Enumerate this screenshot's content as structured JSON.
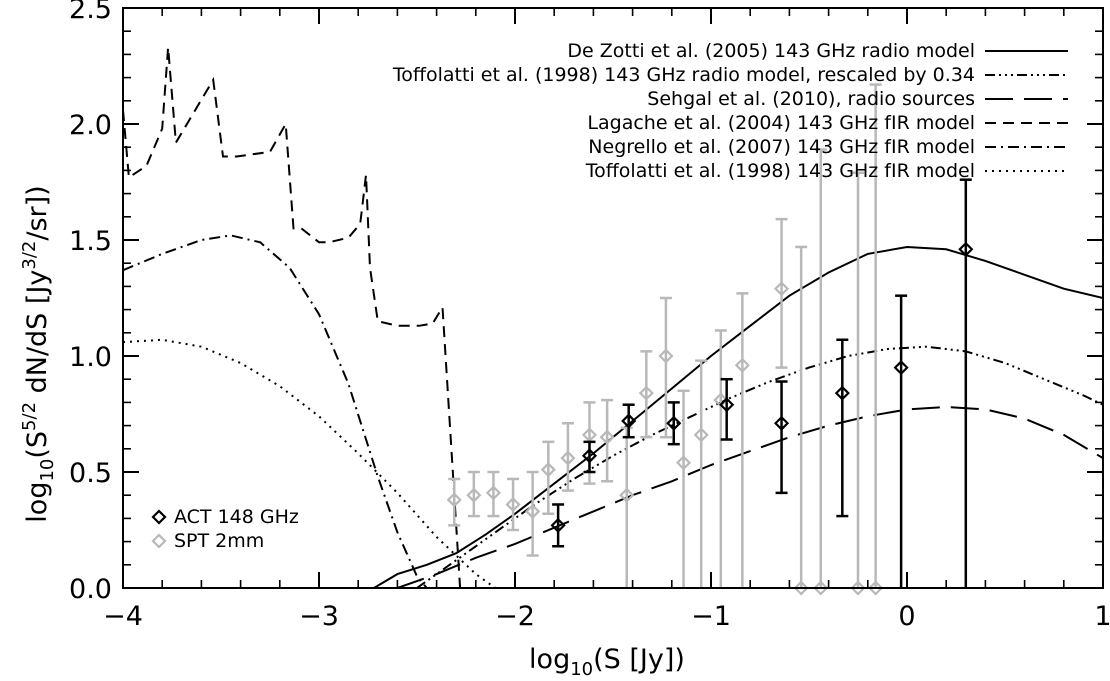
{
  "chart_data": {
    "type": "line",
    "xlabel": {
      "pre": "log",
      "sub": "10",
      "post": "(S [Jy])"
    },
    "ylabel": {
      "pre": "log",
      "sub": "10",
      "mid1": "(S",
      "sup1": "5/2",
      "mid2": " dN/dS [Jy",
      "sup2": "3/2",
      "post": "/sr])"
    },
    "xlim": [
      -4,
      1
    ],
    "ylim": [
      0,
      2.5
    ],
    "x_ticks": [
      "−4",
      "−3",
      "−2",
      "−1",
      "0",
      "1"
    ],
    "x_tick_values": [
      -4,
      -3,
      -2,
      -1,
      0,
      1
    ],
    "y_ticks": [
      "0.0",
      "0.5",
      "1.0",
      "1.5",
      "2.0",
      "2.5"
    ],
    "y_tick_values": [
      0,
      0.5,
      1.0,
      1.5,
      2.0,
      2.5
    ],
    "grid": false,
    "legend_position": "top-right",
    "models": [
      {
        "label": "De Zotti et al. (2005) 143 GHz radio model",
        "dash": "",
        "color": "#000000",
        "x": [
          -2.72,
          -2.6,
          -2.45,
          -2.3,
          -2.15,
          -2.0,
          -1.8,
          -1.6,
          -1.4,
          -1.2,
          -1.0,
          -0.8,
          -0.6,
          -0.4,
          -0.2,
          0.0,
          0.2,
          0.4,
          0.6,
          0.8,
          1.0
        ],
        "y": [
          0.0,
          0.06,
          0.1,
          0.15,
          0.23,
          0.32,
          0.45,
          0.58,
          0.72,
          0.86,
          1.0,
          1.13,
          1.26,
          1.36,
          1.44,
          1.47,
          1.46,
          1.41,
          1.35,
          1.29,
          1.25
        ]
      },
      {
        "label": "Toffolatti et al. (1998) 143 GHz radio model, rescaled by 0.34",
        "dash": "10,4,2,4,2,4,2,4",
        "color": "#000000",
        "x": [
          -2.5,
          -2.3,
          -2.1,
          -1.9,
          -1.7,
          -1.5,
          -1.3,
          -1.1,
          -0.9,
          -0.7,
          -0.5,
          -0.3,
          -0.1,
          0.1,
          0.3,
          0.5,
          0.7,
          0.9,
          1.0
        ],
        "y": [
          0.0,
          0.12,
          0.24,
          0.36,
          0.47,
          0.57,
          0.66,
          0.74,
          0.82,
          0.89,
          0.95,
          1.0,
          1.03,
          1.04,
          1.02,
          0.97,
          0.9,
          0.83,
          0.79
        ]
      },
      {
        "label": "Sehgal et al. (2010), radio sources",
        "dash": "28,11",
        "color": "#000000",
        "x": [
          -2.6,
          -2.4,
          -2.2,
          -2.0,
          -1.8,
          -1.6,
          -1.4,
          -1.2,
          -1.0,
          -0.8,
          -0.6,
          -0.4,
          -0.2,
          0.0,
          0.2,
          0.4,
          0.6,
          0.8,
          1.0
        ],
        "y": [
          0.0,
          0.06,
          0.13,
          0.19,
          0.26,
          0.33,
          0.4,
          0.46,
          0.53,
          0.59,
          0.65,
          0.7,
          0.74,
          0.77,
          0.78,
          0.77,
          0.73,
          0.66,
          0.56
        ]
      },
      {
        "label": "Lagache et al. (2004) 143 GHz fIR model",
        "dash": "11,7",
        "color": "#000000",
        "x": [
          -4.0,
          -3.97,
          -3.88,
          -3.8,
          -3.77,
          -3.73,
          -3.54,
          -3.49,
          -3.42,
          -3.25,
          -3.17,
          -3.13,
          -3.09,
          -3.0,
          -2.95,
          -2.85,
          -2.79,
          -2.76,
          -2.74,
          -2.7,
          -2.6,
          -2.49,
          -2.42,
          -2.37,
          -2.28
        ],
        "y": [
          2.06,
          1.77,
          1.82,
          1.98,
          2.33,
          1.92,
          2.19,
          1.86,
          1.86,
          1.88,
          2.0,
          1.55,
          1.55,
          1.49,
          1.49,
          1.51,
          1.57,
          1.78,
          1.38,
          1.15,
          1.13,
          1.13,
          1.14,
          1.21,
          0.0
        ]
      },
      {
        "label": "Negrello et al. (2007) 143 GHz fIR model",
        "dash": "11,5,2,5",
        "color": "#000000",
        "x": [
          -4.0,
          -3.8,
          -3.6,
          -3.45,
          -3.3,
          -3.15,
          -3.0,
          -2.85,
          -2.7,
          -2.6,
          -2.5,
          -2.45
        ],
        "y": [
          1.37,
          1.44,
          1.5,
          1.52,
          1.49,
          1.38,
          1.18,
          0.88,
          0.48,
          0.24,
          0.05,
          0.0
        ]
      },
      {
        "label": "Toffolatti et al. (1998) 143 GHz fIR model",
        "dash": "2,5",
        "color": "#000000",
        "x": [
          -4.0,
          -3.8,
          -3.6,
          -3.4,
          -3.2,
          -3.0,
          -2.8,
          -2.6,
          -2.4,
          -2.2,
          -2.1
        ],
        "y": [
          1.06,
          1.07,
          1.04,
          0.97,
          0.87,
          0.74,
          0.58,
          0.41,
          0.22,
          0.06,
          0.0
        ]
      }
    ],
    "datasets": [
      {
        "label": "ACT 148 GHz",
        "color": "#000000",
        "points": [
          {
            "x": -1.78,
            "y": 0.27,
            "yerr_low": 0.18,
            "yerr_high": 0.36
          },
          {
            "x": -1.62,
            "y": 0.57,
            "yerr_low": 0.5,
            "yerr_high": 0.63
          },
          {
            "x": -1.42,
            "y": 0.72,
            "yerr_low": 0.65,
            "yerr_high": 0.79
          },
          {
            "x": -1.19,
            "y": 0.71,
            "yerr_low": 0.62,
            "yerr_high": 0.8
          },
          {
            "x": -0.92,
            "y": 0.79,
            "yerr_low": 0.64,
            "yerr_high": 0.9
          },
          {
            "x": -0.64,
            "y": 0.71,
            "yerr_low": 0.41,
            "yerr_high": 0.89
          },
          {
            "x": -0.33,
            "y": 0.84,
            "yerr_low": 0.31,
            "yerr_high": 1.07
          },
          {
            "x": -0.03,
            "y": 0.95,
            "yerr_low": 0.0,
            "yerr_high": 1.26
          },
          {
            "x": 0.3,
            "y": 1.46,
            "yerr_low": 0.0,
            "yerr_high": 1.76
          }
        ]
      },
      {
        "label": "SPT 2mm",
        "color": "#b8b8b8",
        "points": [
          {
            "x": -2.31,
            "y": 0.38,
            "yerr_low": 0.27,
            "yerr_high": 0.47
          },
          {
            "x": -2.21,
            "y": 0.4,
            "yerr_low": 0.31,
            "yerr_high": 0.5
          },
          {
            "x": -2.11,
            "y": 0.41,
            "yerr_low": 0.31,
            "yerr_high": 0.5
          },
          {
            "x": -2.01,
            "y": 0.36,
            "yerr_low": 0.25,
            "yerr_high": 0.47
          },
          {
            "x": -1.91,
            "y": 0.33,
            "yerr_low": 0.14,
            "yerr_high": 0.5
          },
          {
            "x": -1.83,
            "y": 0.51,
            "yerr_low": 0.32,
            "yerr_high": 0.63
          },
          {
            "x": -1.73,
            "y": 0.56,
            "yerr_low": 0.42,
            "yerr_high": 0.71
          },
          {
            "x": -1.62,
            "y": 0.66,
            "yerr_low": 0.45,
            "yerr_high": 0.8
          },
          {
            "x": -1.53,
            "y": 0.65,
            "yerr_low": 0.46,
            "yerr_high": 0.81
          },
          {
            "x": -1.43,
            "y": 0.4,
            "yerr_low": 0.0,
            "yerr_high": 0.69
          },
          {
            "x": -1.33,
            "y": 0.84,
            "yerr_low": 0.65,
            "yerr_high": 1.02
          },
          {
            "x": -1.23,
            "y": 1.0,
            "yerr_low": 0.65,
            "yerr_high": 1.25
          },
          {
            "x": -1.14,
            "y": 0.54,
            "yerr_low": 0.0,
            "yerr_high": 0.85
          },
          {
            "x": -1.05,
            "y": 0.66,
            "yerr_low": 0.0,
            "yerr_high": 0.98
          },
          {
            "x": -0.95,
            "y": 0.81,
            "yerr_low": 0.0,
            "yerr_high": 1.11
          },
          {
            "x": -0.84,
            "y": 0.96,
            "yerr_low": 0.0,
            "yerr_high": 1.27
          },
          {
            "x": -0.64,
            "y": 1.29,
            "yerr_low": 0.95,
            "yerr_high": 1.59
          },
          {
            "x": -0.54,
            "y": 0.0,
            "yerr_low": 0.0,
            "yerr_high": 1.47
          },
          {
            "x": -0.44,
            "y": 0.0,
            "yerr_low": 0.0,
            "yerr_high": 1.89
          },
          {
            "x": -0.25,
            "y": 0.0,
            "yerr_low": 0.0,
            "yerr_high": 1.79
          },
          {
            "x": -0.16,
            "y": 0.0,
            "yerr_low": 0.0,
            "yerr_high": 2.17
          }
        ]
      }
    ]
  }
}
